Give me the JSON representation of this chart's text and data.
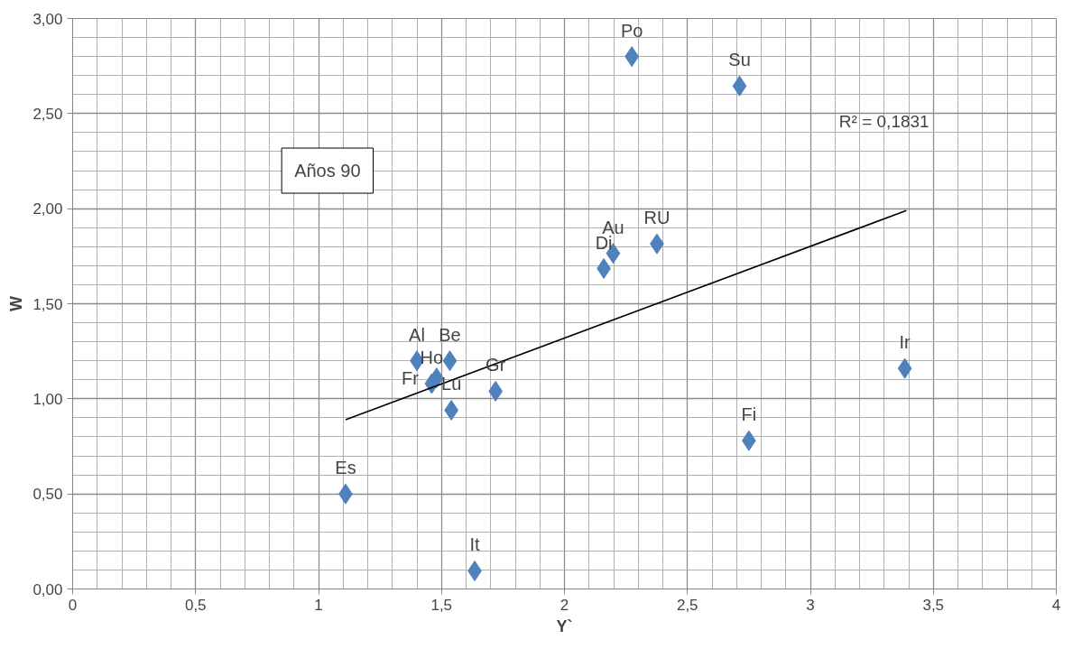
{
  "chart_data": {
    "type": "scatter",
    "xlabel": "Y`",
    "ylabel": "W",
    "x": [
      2.274,
      2.712,
      2.376,
      2.198,
      2.16,
      3.384,
      2.75,
      1.4,
      1.534,
      1.46,
      1.48,
      1.54,
      1.72,
      1.11,
      1.635
    ],
    "series": [
      {
        "color": "#4f81bd",
        "marker": "diamond",
        "values": [
          2.8,
          2.645,
          1.815,
          1.765,
          1.685,
          1.16,
          0.78,
          1.2,
          1.2,
          1.08,
          1.11,
          0.94,
          1.04,
          0.5,
          0.095
        ]
      },
      {
        "type": "line",
        "color": "#000000",
        "x": [
          1.11,
          3.39
        ],
        "values": [
          0.89,
          1.99
        ]
      }
    ],
    "grid": true,
    "xlim": [
      0,
      4
    ],
    "ylim": [
      0,
      3
    ],
    "xticks": [
      0,
      {
        "value": 0.5,
        "label": "0,5"
      },
      1,
      {
        "value": 1.5,
        "label": "1,5"
      },
      2,
      {
        "value": 2.5,
        "label": "2,5"
      },
      3,
      {
        "value": 3.5,
        "label": "3,5"
      },
      4
    ],
    "yticks": [
      {
        "value": 0,
        "label": "0,00"
      },
      {
        "value": 0.5,
        "label": "0,50"
      },
      {
        "value": 1,
        "label": "1,00"
      },
      {
        "value": 1.5,
        "label": "1,50"
      },
      {
        "value": 2,
        "label": "2,00"
      },
      {
        "value": 2.5,
        "label": "2,50"
      },
      {
        "value": 3,
        "label": "3,00"
      }
    ],
    "annotations": [
      {
        "text": "Po",
        "x": 2.274,
        "y": 2.8
      },
      {
        "text": "Su",
        "x": 2.712,
        "y": 2.645
      },
      {
        "text": "RU",
        "x": 2.376,
        "y": 1.815
      },
      {
        "text": "Au",
        "x": 2.198,
        "y": 1.765
      },
      {
        "text": "Di",
        "x": 2.16,
        "y": 1.685
      },
      {
        "text": "Ir",
        "x": 3.384,
        "y": 1.16
      },
      {
        "text": "Fi",
        "x": 2.75,
        "y": 0.78
      },
      {
        "text": "Al",
        "x": 1.4,
        "y": 1.2
      },
      {
        "text": "Be",
        "x": 1.534,
        "y": 1.2
      },
      {
        "text": "Ho",
        "x": 1.46,
        "y": 1.08
      },
      {
        "text": "Fr",
        "x": 1.48,
        "y": 1.11
      },
      {
        "text": "Lu",
        "x": 1.54,
        "y": 0.94
      },
      {
        "text": "Gr",
        "x": 1.72,
        "y": 1.04
      },
      {
        "text": "Es",
        "x": 1.11,
        "y": 0.5
      },
      {
        "text": "It",
        "x": 1.635,
        "y": 0.095
      },
      "R² = 0,1831",
      "Años 90"
    ]
  }
}
